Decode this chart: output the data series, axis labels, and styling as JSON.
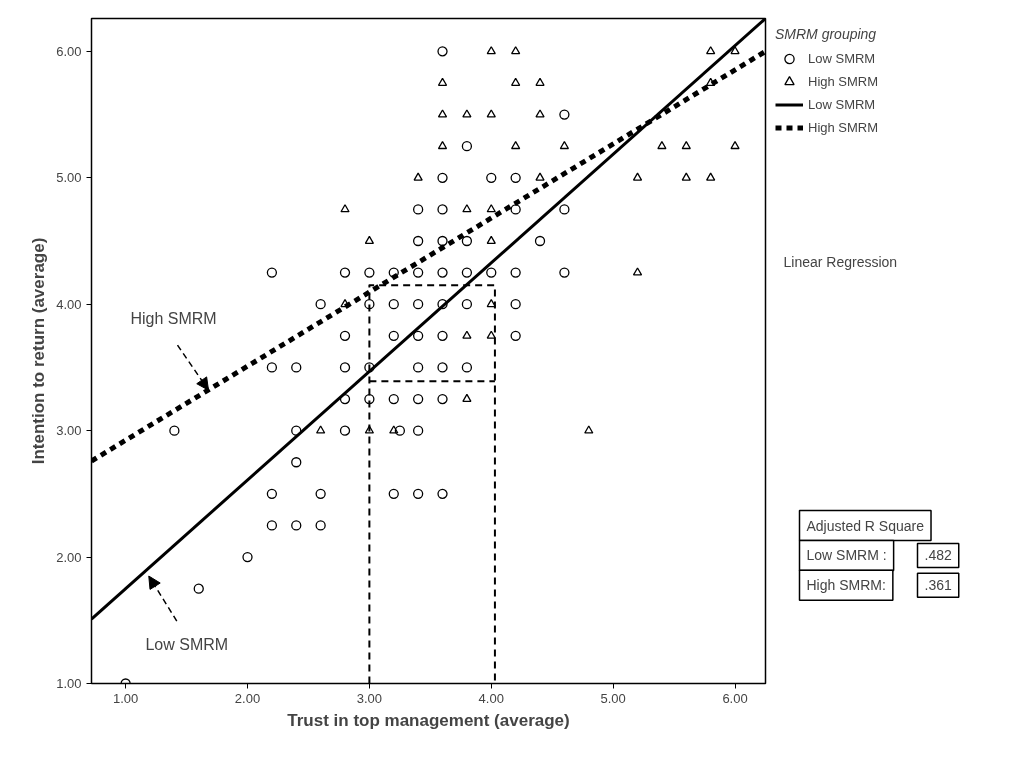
{
  "chart_data": {
    "type": "scatter",
    "xlabel": "Trust in top management (average)",
    "ylabel": "Intention to return (average)",
    "legend_title": "SMRM grouping",
    "legend": "right",
    "grid": false,
    "xlim": [
      0.72,
      6.25
    ],
    "ylim": [
      1.0,
      6.26
    ],
    "xticks": [
      {
        "value": 1,
        "label": "1.00"
      },
      {
        "value": 2,
        "label": "2.00"
      },
      {
        "value": 3,
        "label": "3.00"
      },
      {
        "value": 4,
        "label": "4.00"
      },
      {
        "value": 5,
        "label": "5.00"
      },
      {
        "value": 6,
        "label": "6.00"
      }
    ],
    "yticks": [
      {
        "value": 1,
        "label": "1.00"
      },
      {
        "value": 2,
        "label": "2.00"
      },
      {
        "value": 3,
        "label": "3.00"
      },
      {
        "value": 4,
        "label": "4.00"
      },
      {
        "value": 5,
        "label": "5.00"
      },
      {
        "value": 6,
        "label": "6.00"
      }
    ],
    "series": [
      {
        "name": "Low SMRM",
        "marker": "circle",
        "color": "#000000",
        "x": [
          1.0,
          1.6,
          2.0,
          1.4,
          2.2,
          2.4,
          2.6,
          2.2,
          2.6,
          3.2,
          3.4,
          3.6,
          2.4,
          2.4,
          2.8,
          3.25,
          3.4,
          2.8,
          3.0,
          3.2,
          3.4,
          3.6,
          2.2,
          2.4,
          2.8,
          3.0,
          3.4,
          3.6,
          3.8,
          2.8,
          3.2,
          3.4,
          3.6,
          4.2,
          2.6,
          3.0,
          3.2,
          3.4,
          3.6,
          3.8,
          4.2,
          2.2,
          2.8,
          3.0,
          3.2,
          3.4,
          3.6,
          3.8,
          4.0,
          4.2,
          4.6,
          3.4,
          3.6,
          3.8,
          4.4,
          3.4,
          3.6,
          4.2,
          4.6,
          3.6,
          4.0,
          4.2,
          3.8,
          4.6,
          3.6
        ],
        "values": [
          1.0,
          1.75,
          2.0,
          3.0,
          2.25,
          2.25,
          2.25,
          2.5,
          2.5,
          2.5,
          2.5,
          2.5,
          2.75,
          3.0,
          3.0,
          3.0,
          3.0,
          3.25,
          3.25,
          3.25,
          3.25,
          3.25,
          3.5,
          3.5,
          3.5,
          3.5,
          3.5,
          3.5,
          3.5,
          3.75,
          3.75,
          3.75,
          3.75,
          3.75,
          4.0,
          4.0,
          4.0,
          4.0,
          4.0,
          4.0,
          4.0,
          4.25,
          4.25,
          4.25,
          4.25,
          4.25,
          4.25,
          4.25,
          4.25,
          4.25,
          4.25,
          4.5,
          4.5,
          4.5,
          4.5,
          4.75,
          4.75,
          4.75,
          4.75,
          5.0,
          5.0,
          5.0,
          5.25,
          5.5,
          6.0
        ]
      },
      {
        "name": "High SMRM",
        "marker": "triangle",
        "color": "#000000",
        "x": [
          2.6,
          3.0,
          3.2,
          4.8,
          3.8,
          3.8,
          4.0,
          2.8,
          4.0,
          5.2,
          3.0,
          4.0,
          2.8,
          3.8,
          4.0,
          3.4,
          4.4,
          5.2,
          5.6,
          5.8,
          3.6,
          4.2,
          4.6,
          5.4,
          5.6,
          6.0,
          3.6,
          3.8,
          4.0,
          4.4,
          3.6,
          4.2,
          4.4,
          5.8,
          4.0,
          4.2,
          5.8,
          6.0
        ],
        "values": [
          3.0,
          3.0,
          3.0,
          3.0,
          3.25,
          3.75,
          3.75,
          4.0,
          4.0,
          4.25,
          4.5,
          4.5,
          4.75,
          4.75,
          4.75,
          5.0,
          5.0,
          5.0,
          5.0,
          5.0,
          5.25,
          5.25,
          5.25,
          5.25,
          5.25,
          5.25,
          5.5,
          5.5,
          5.5,
          5.5,
          5.75,
          5.75,
          5.75,
          5.75,
          6.0,
          6.0,
          6.0,
          6.0
        ]
      },
      {
        "name": "Low SMRM",
        "type": "line",
        "line_style": "solid",
        "color": "#000000",
        "x": [
          0.72,
          6.25
        ],
        "values": [
          1.51,
          6.26
        ]
      },
      {
        "name": "High SMRM",
        "type": "line",
        "line_style": "dotted",
        "color": "#000000",
        "x": [
          0.72,
          6.25
        ],
        "values": [
          2.76,
          6.0
        ]
      },
      {
        "type": "line",
        "line_style": "dashed",
        "color": "#000000",
        "x": [
          3.0,
          3.0,
          4.03,
          4.03
        ],
        "values": [
          1.0,
          4.15,
          4.15,
          1.0
        ]
      },
      {
        "type": "line",
        "line_style": "dashed",
        "color": "#000000",
        "x": [
          3.0,
          4.03
        ],
        "values": [
          3.39,
          3.39
        ]
      }
    ],
    "annotations": [
      {
        "text": "High SMRM",
        "x": 1.68,
        "y": 3.32
      },
      {
        "text": "Low SMRM",
        "x": 1.19,
        "y": 1.85
      },
      "Linear Regression",
      "Adjusted R Square",
      "Low SMRM :",
      ".482",
      "High SMRM:",
      ".361"
    ]
  }
}
